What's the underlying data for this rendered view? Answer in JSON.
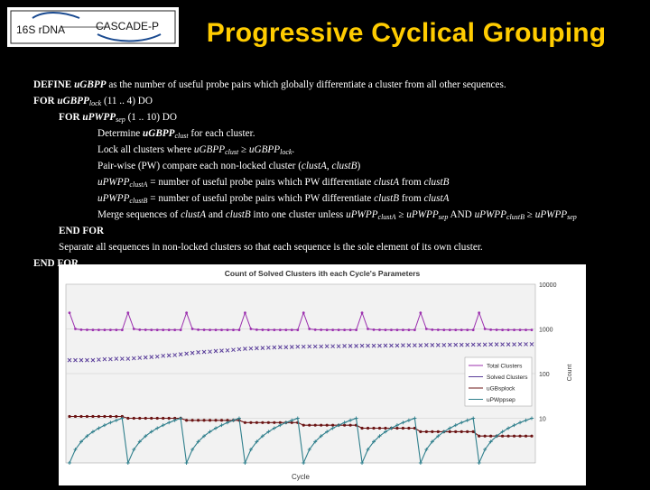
{
  "logo": {
    "left_text": "16S rDNA",
    "right_text": "CASCADE-P"
  },
  "title": "Progressive Cyclical Grouping",
  "algorithm": {
    "line1": {
      "kw": "DEFINE",
      "var": "uGBPP",
      "rest": " as the number of useful probe pairs which globally differentiate a cluster from all other sequences."
    },
    "line2": {
      "kw": "FOR",
      "var": "uGBPP",
      "sub": "lock",
      "rest": " (11 .. 4) DO"
    },
    "line3": {
      "kw": "FOR",
      "var": "uPWPP",
      "sub": "sep",
      "rest": " (1 .. 10) DO"
    },
    "line4": {
      "pre": "Determine ",
      "var": "uGBPP",
      "sub": "clust",
      "rest": " for each cluster."
    },
    "line5": {
      "pre": "Lock all clusters where ",
      "var1": "uGBPP",
      "sub1": "clust",
      "mid": " ≥ ",
      "var2": "uGBPP",
      "sub2": "lock",
      "rest": "."
    },
    "line6": {
      "pre": "Pair-wise (PW) compare each non-locked cluster (",
      "v1": "clustA",
      "comma": ", ",
      "v2": "clustB",
      "rest": ")"
    },
    "line7": {
      "var": "uPWPP",
      "sub": "clustA",
      "mid": " = number of useful probe pairs which PW differentiate ",
      "v1": "clustA",
      "from": " from ",
      "v2": "clustB"
    },
    "line8": {
      "var": "uPWPP",
      "sub": "clustB",
      "mid": " = number of useful probe pairs which PW differentiate ",
      "v1": "clustB",
      "from": " from ",
      "v2": "clustA"
    },
    "line9": {
      "pre": "Merge sequences of ",
      "v1": "clustA",
      "and": " and ",
      "v2": "clustB",
      "mid": " into one cluster unless ",
      "a": "uPWPP",
      "asub": "clustA",
      "ge1": " ≥ ",
      "b": "uPWPP",
      "bsub": "sep",
      "and2": " AND ",
      "c": "uPWPP",
      "csub": "clustB",
      "ge2": " ≥ ",
      "d": "uPWPP",
      "dsub": "sep"
    },
    "line10": "END FOR",
    "line11": "Separate all sequences in non-locked clusters so that each sequence is the sole element of its own cluster.",
    "line12": "END FOR"
  },
  "chart_data": {
    "type": "line",
    "title": "Count of Solved Clusters ith each Cycle's Parameters",
    "xlabel": "Cycle",
    "ylabel": "Count",
    "yscale": "log",
    "ylim": [
      1,
      10000
    ],
    "y_tick_labels": [
      "10000",
      "1000",
      "100",
      "10"
    ],
    "y_tick_values": [
      10000,
      1000,
      100,
      10
    ],
    "legend_position": "right",
    "legend": [
      "Total Clusters",
      "Solved Clusters",
      "uGBsplock",
      "uPWppsep"
    ],
    "colors": {
      "total": "#9b2fae",
      "solved": "#5a3e9a",
      "lock": "#6b1414",
      "sep": "#2f7f8c"
    },
    "n_cycles": 80,
    "series": [
      {
        "name": "Total Clusters",
        "pattern": "sawtooth spikes to ~2000 at each of 8 lock levels, baseline ~1000",
        "cycles_per_block": 10,
        "values": [
          2300,
          1000,
          960,
          955,
          950,
          950,
          950,
          950,
          950,
          950,
          2300,
          1000,
          960,
          955,
          950,
          950,
          950,
          950,
          950,
          950,
          2300,
          1000,
          960,
          955,
          950,
          950,
          950,
          950,
          950,
          950,
          2300,
          1000,
          960,
          955,
          950,
          950,
          950,
          950,
          950,
          950,
          2300,
          1000,
          960,
          955,
          950,
          950,
          950,
          950,
          950,
          950,
          2300,
          1000,
          960,
          955,
          950,
          950,
          950,
          950,
          950,
          950,
          2300,
          1000,
          960,
          955,
          950,
          950,
          950,
          950,
          950,
          950,
          2300,
          1000,
          960,
          955,
          950,
          950,
          950,
          950,
          950,
          950
        ]
      },
      {
        "name": "Solved Clusters",
        "values": [
          200,
          200,
          200,
          200,
          200,
          205,
          210,
          210,
          215,
          215,
          215,
          220,
          225,
          230,
          235,
          240,
          250,
          255,
          260,
          270,
          280,
          290,
          300,
          305,
          310,
          320,
          325,
          330,
          340,
          350,
          360,
          365,
          370,
          375,
          380,
          385,
          390,
          390,
          395,
          400,
          400,
          405,
          405,
          405,
          410,
          410,
          410,
          415,
          415,
          415,
          420,
          420,
          420,
          420,
          425,
          425,
          425,
          430,
          430,
          430,
          430,
          435,
          435,
          435,
          435,
          440,
          440,
          440,
          440,
          445,
          445,
          445,
          450,
          450,
          450,
          450,
          450,
          455,
          455,
          455
        ]
      },
      {
        "name": "uGBsplock",
        "values": [
          11,
          11,
          11,
          11,
          11,
          11,
          11,
          11,
          11,
          11,
          10,
          10,
          10,
          10,
          10,
          10,
          10,
          10,
          10,
          10,
          9,
          9,
          9,
          9,
          9,
          9,
          9,
          9,
          9,
          9,
          8,
          8,
          8,
          8,
          8,
          8,
          8,
          8,
          8,
          8,
          7,
          7,
          7,
          7,
          7,
          7,
          7,
          7,
          7,
          7,
          6,
          6,
          6,
          6,
          6,
          6,
          6,
          6,
          6,
          6,
          5,
          5,
          5,
          5,
          5,
          5,
          5,
          5,
          5,
          5,
          4,
          4,
          4,
          4,
          4,
          4,
          4,
          4,
          4,
          4
        ]
      },
      {
        "name": "uPWppsep",
        "values": [
          1,
          2,
          3,
          4,
          5,
          6,
          7,
          8,
          9,
          10,
          1,
          2,
          3,
          4,
          5,
          6,
          7,
          8,
          9,
          10,
          1,
          2,
          3,
          4,
          5,
          6,
          7,
          8,
          9,
          10,
          1,
          2,
          3,
          4,
          5,
          6,
          7,
          8,
          9,
          10,
          1,
          2,
          3,
          4,
          5,
          6,
          7,
          8,
          9,
          10,
          1,
          2,
          3,
          4,
          5,
          6,
          7,
          8,
          9,
          10,
          1,
          2,
          3,
          4,
          5,
          6,
          7,
          8,
          9,
          10,
          1,
          2,
          3,
          4,
          5,
          6,
          7,
          8,
          9,
          10
        ]
      }
    ]
  }
}
